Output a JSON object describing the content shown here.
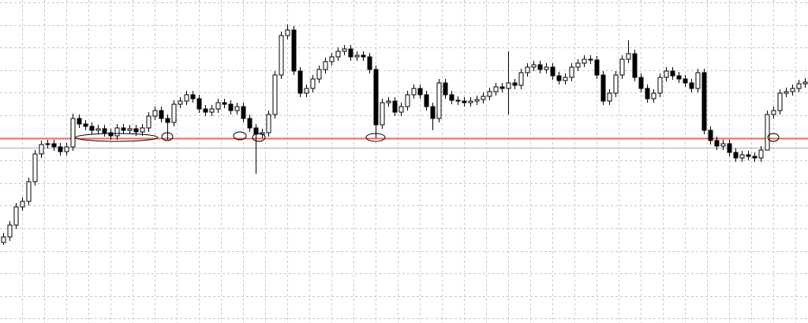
{
  "chart_data": {
    "type": "candlestick",
    "title": "",
    "xlabel": "",
    "ylabel": "",
    "grid": true,
    "ylim": [
      0,
      40.9
    ],
    "colors": {
      "background": "#ffffff",
      "grid": "#c8c8c8",
      "candle": "#000000",
      "level_line": "#ff6060",
      "secondary_line": "#b0b0b0",
      "annotation": "#000000"
    },
    "close": [
      10.9,
      12.4,
      14.7,
      15.4,
      17.9,
      21.4,
      22.6,
      22.7,
      22.3,
      21.7,
      22.3,
      25.9,
      25.2,
      24.9,
      24.4,
      24.6,
      24.1,
      23.7,
      24.7,
      24.4,
      24.6,
      24.2,
      24.7,
      26.2,
      26.9,
      25.9,
      25.4,
      27.7,
      28.1,
      28.9,
      28.4,
      27.1,
      26.7,
      27.1,
      27.9,
      27.7,
      26.9,
      27.4,
      25.9,
      24.7,
      23.9,
      24.1,
      26.4,
      31.4,
      36.4,
      37.1,
      31.9,
      29.1,
      29.7,
      30.9,
      32.1,
      33.1,
      33.7,
      34.4,
      34.7,
      33.7,
      33.9,
      33.7,
      32.1,
      25.1,
      27.9,
      28.1,
      26.7,
      27.4,
      28.9,
      29.7,
      28.9,
      27.4,
      25.9,
      30.4,
      28.9,
      28.2,
      28.1,
      27.9,
      28.1,
      28.3,
      28.7,
      29.3,
      29.9,
      29.7,
      30.4,
      30.1,
      31.7,
      32.4,
      32.7,
      32.1,
      32.4,
      31.3,
      30.7,
      31.1,
      32.4,
      32.9,
      33.4,
      33.3,
      31.4,
      28.1,
      29.1,
      31.4,
      33.4,
      34.1,
      31.1,
      29.7,
      28.4,
      29.1,
      31.1,
      31.9,
      31.3,
      30.9,
      30.4,
      29.7,
      31.7,
      24.4,
      23.1,
      22.4,
      22.7,
      21.6,
      20.9,
      21.3,
      21.1,
      20.9,
      21.9,
      26.4,
      26.9,
      29.1,
      29.3,
      29.7,
      30.3,
      30.5
    ],
    "first_open": 10.2,
    "wick_overrides": [
      {
        "i": 0,
        "low": 9.9
      },
      {
        "i": 11,
        "high": 26.5
      },
      {
        "i": 26,
        "low": 23.2
      },
      {
        "i": 40,
        "low": 18.9
      },
      {
        "i": 45,
        "high": 37.8
      },
      {
        "i": 59,
        "low": 23.4
      },
      {
        "i": 68,
        "low": 24.4
      },
      {
        "i": 80,
        "high": 34.4,
        "low": 26.4
      },
      {
        "i": 99,
        "high": 35.8
      },
      {
        "i": 121,
        "low": 23.4
      }
    ],
    "horizontal_lines": [
      {
        "price": 23.4,
        "role": "level_line"
      },
      {
        "price": 22.2,
        "role": "secondary_line"
      }
    ],
    "annotations": [
      {
        "shape": "ellipse",
        "from_index": 12,
        "to_index": 24,
        "price": 23.5
      },
      {
        "shape": "ellipse",
        "from_index": 26,
        "to_index": 26,
        "price": 23.6
      },
      {
        "shape": "ellipse",
        "from_index": 37,
        "to_index": 38,
        "price": 23.7
      },
      {
        "shape": "ellipse",
        "from_index": 40,
        "to_index": 41,
        "price": 23.5
      },
      {
        "shape": "ellipse",
        "from_index": 58,
        "to_index": 60,
        "price": 23.5
      },
      {
        "shape": "ellipse",
        "from_index": 122,
        "to_index": 122,
        "price": 23.5
      }
    ]
  }
}
